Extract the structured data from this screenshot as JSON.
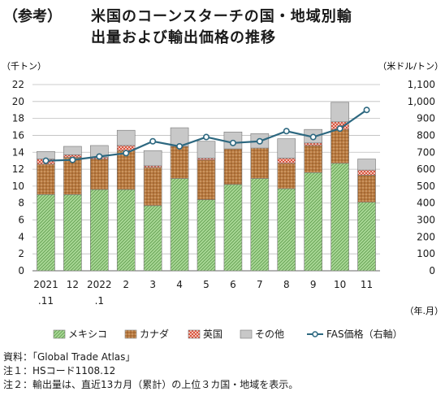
{
  "title": {
    "prefix": "（参考）",
    "line1": "米国のコーンスターチの国・地域別輸",
    "line2": "出量および輸出価格の推移"
  },
  "chart_data": {
    "type": "bar",
    "stacked": true,
    "left_axis_unit": "（千トン）",
    "right_axis_unit": "（米ドル/トン）",
    "x_axis_unit": "（年.月）",
    "categories": [
      "2021\n.11",
      "12",
      "2022\n.1",
      "2",
      "3",
      "4",
      "5",
      "6",
      "7",
      "8",
      "9",
      "10",
      "11"
    ],
    "ylim": [
      0,
      22
    ],
    "yticks": [
      "0",
      "2",
      "4",
      "6",
      "8",
      "10",
      "12",
      "14",
      "16",
      "18",
      "20",
      "22"
    ],
    "y2lim": [
      0,
      1100
    ],
    "y2ticks": [
      "0",
      "100",
      "200",
      "300",
      "400",
      "500",
      "600",
      "700",
      "800",
      "900",
      "1,000",
      "1,100"
    ],
    "series": [
      {
        "name": "メキシコ",
        "color": "#9fd08a",
        "values": [
          9.0,
          9.0,
          9.6,
          9.6,
          7.7,
          10.9,
          8.4,
          10.2,
          10.9,
          9.7,
          11.6,
          12.7,
          8.1
        ]
      },
      {
        "name": "カナダ",
        "color": "#b8773e",
        "values": [
          3.6,
          4.4,
          3.6,
          4.6,
          4.5,
          3.8,
          4.7,
          4.2,
          3.6,
          3.0,
          3.2,
          4.0,
          3.2
        ]
      },
      {
        "name": "英国",
        "color": "#d9553f",
        "values": [
          0.6,
          0.3,
          0.2,
          0.6,
          0.2,
          0.0,
          0.2,
          0.0,
          0.0,
          0.6,
          0.3,
          0.9,
          0.6
        ]
      },
      {
        "name": "その他",
        "color": "#c8c8c8",
        "values": [
          0.9,
          1.0,
          1.4,
          1.8,
          1.8,
          2.2,
          2.0,
          2.0,
          1.7,
          2.3,
          1.6,
          2.3,
          1.3
        ]
      }
    ],
    "line_series": {
      "name": "FAS価格（右軸）",
      "color": "#2d6880",
      "values": [
        650,
        655,
        675,
        695,
        765,
        735,
        790,
        755,
        765,
        825,
        790,
        840,
        950
      ]
    }
  },
  "notes": [
    "資料：「Global Trade Atlas」",
    "注１：HSコード1108.12",
    "注２：輸出量は、直近13カ月（累計）の上位３カ国・地域を表示。"
  ]
}
